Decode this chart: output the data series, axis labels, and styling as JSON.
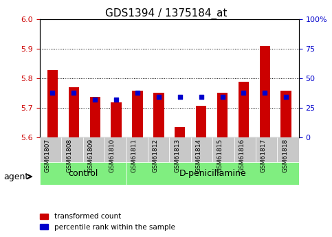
{
  "title": "GDS1394 / 1375184_at",
  "samples": [
    "GSM61807",
    "GSM61808",
    "GSM61809",
    "GSM61810",
    "GSM61811",
    "GSM61812",
    "GSM61813",
    "GSM61814",
    "GSM61815",
    "GSM61816",
    "GSM61817",
    "GSM61818"
  ],
  "red_values": [
    5.827,
    5.77,
    5.738,
    5.718,
    5.757,
    5.75,
    5.634,
    5.706,
    5.75,
    5.787,
    5.908,
    5.757
  ],
  "blue_values": [
    5.762,
    5.762,
    5.749,
    5.746,
    5.757,
    5.75,
    5.737,
    5.741,
    5.75,
    5.757,
    5.762,
    5.75
  ],
  "ylim_left": [
    5.6,
    6.0
  ],
  "ylim_right": [
    0,
    100
  ],
  "yticks_left": [
    5.6,
    5.7,
    5.8,
    5.9,
    6.0
  ],
  "yticks_right": [
    0,
    25,
    50,
    75,
    100
  ],
  "ytick_labels_right": [
    "0",
    "25",
    "50",
    "75",
    "100%"
  ],
  "bar_bottom": 5.6,
  "red_color": "#cc0000",
  "blue_color": "#0000cc",
  "control_group": [
    "GSM61807",
    "GSM61808",
    "GSM61809",
    "GSM61810"
  ],
  "treatment_group": [
    "GSM61811",
    "GSM61812",
    "GSM61813",
    "GSM61814",
    "GSM61815",
    "GSM61816",
    "GSM61817",
    "GSM61818"
  ],
  "control_label": "control",
  "treatment_label": "D-penicillamine",
  "agent_label": "agent",
  "legend_red": "transformed count",
  "legend_blue": "percentile rank within the sample",
  "bar_width": 0.5,
  "bg_color": "#ffffff",
  "tick_bg": "#d0d0d0",
  "group_bg": "#80ee80"
}
